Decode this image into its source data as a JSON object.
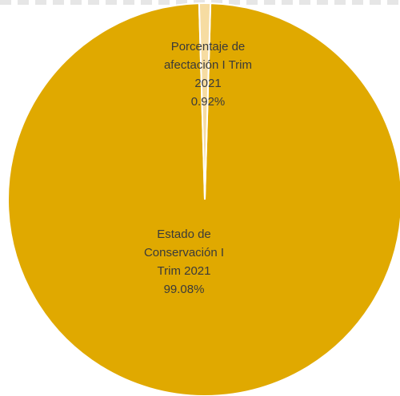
{
  "chart_data": {
    "type": "pie",
    "slices": [
      {
        "name": "Estado de Conservación I Trim 2021",
        "value": 99.08,
        "label_lines": [
          "Estado de",
          "Conservación I",
          "Trim 2021",
          "99.08%"
        ],
        "color": "#e0a900"
      },
      {
        "name": "Porcentaje de afectación I Trim 2021",
        "value": 0.92,
        "label_lines": [
          "Porcentaje de",
          "afectación I Trim",
          "2021",
          "0.92%"
        ],
        "color": "#f6dca2"
      }
    ],
    "slice_border_color": "#ffffff"
  }
}
